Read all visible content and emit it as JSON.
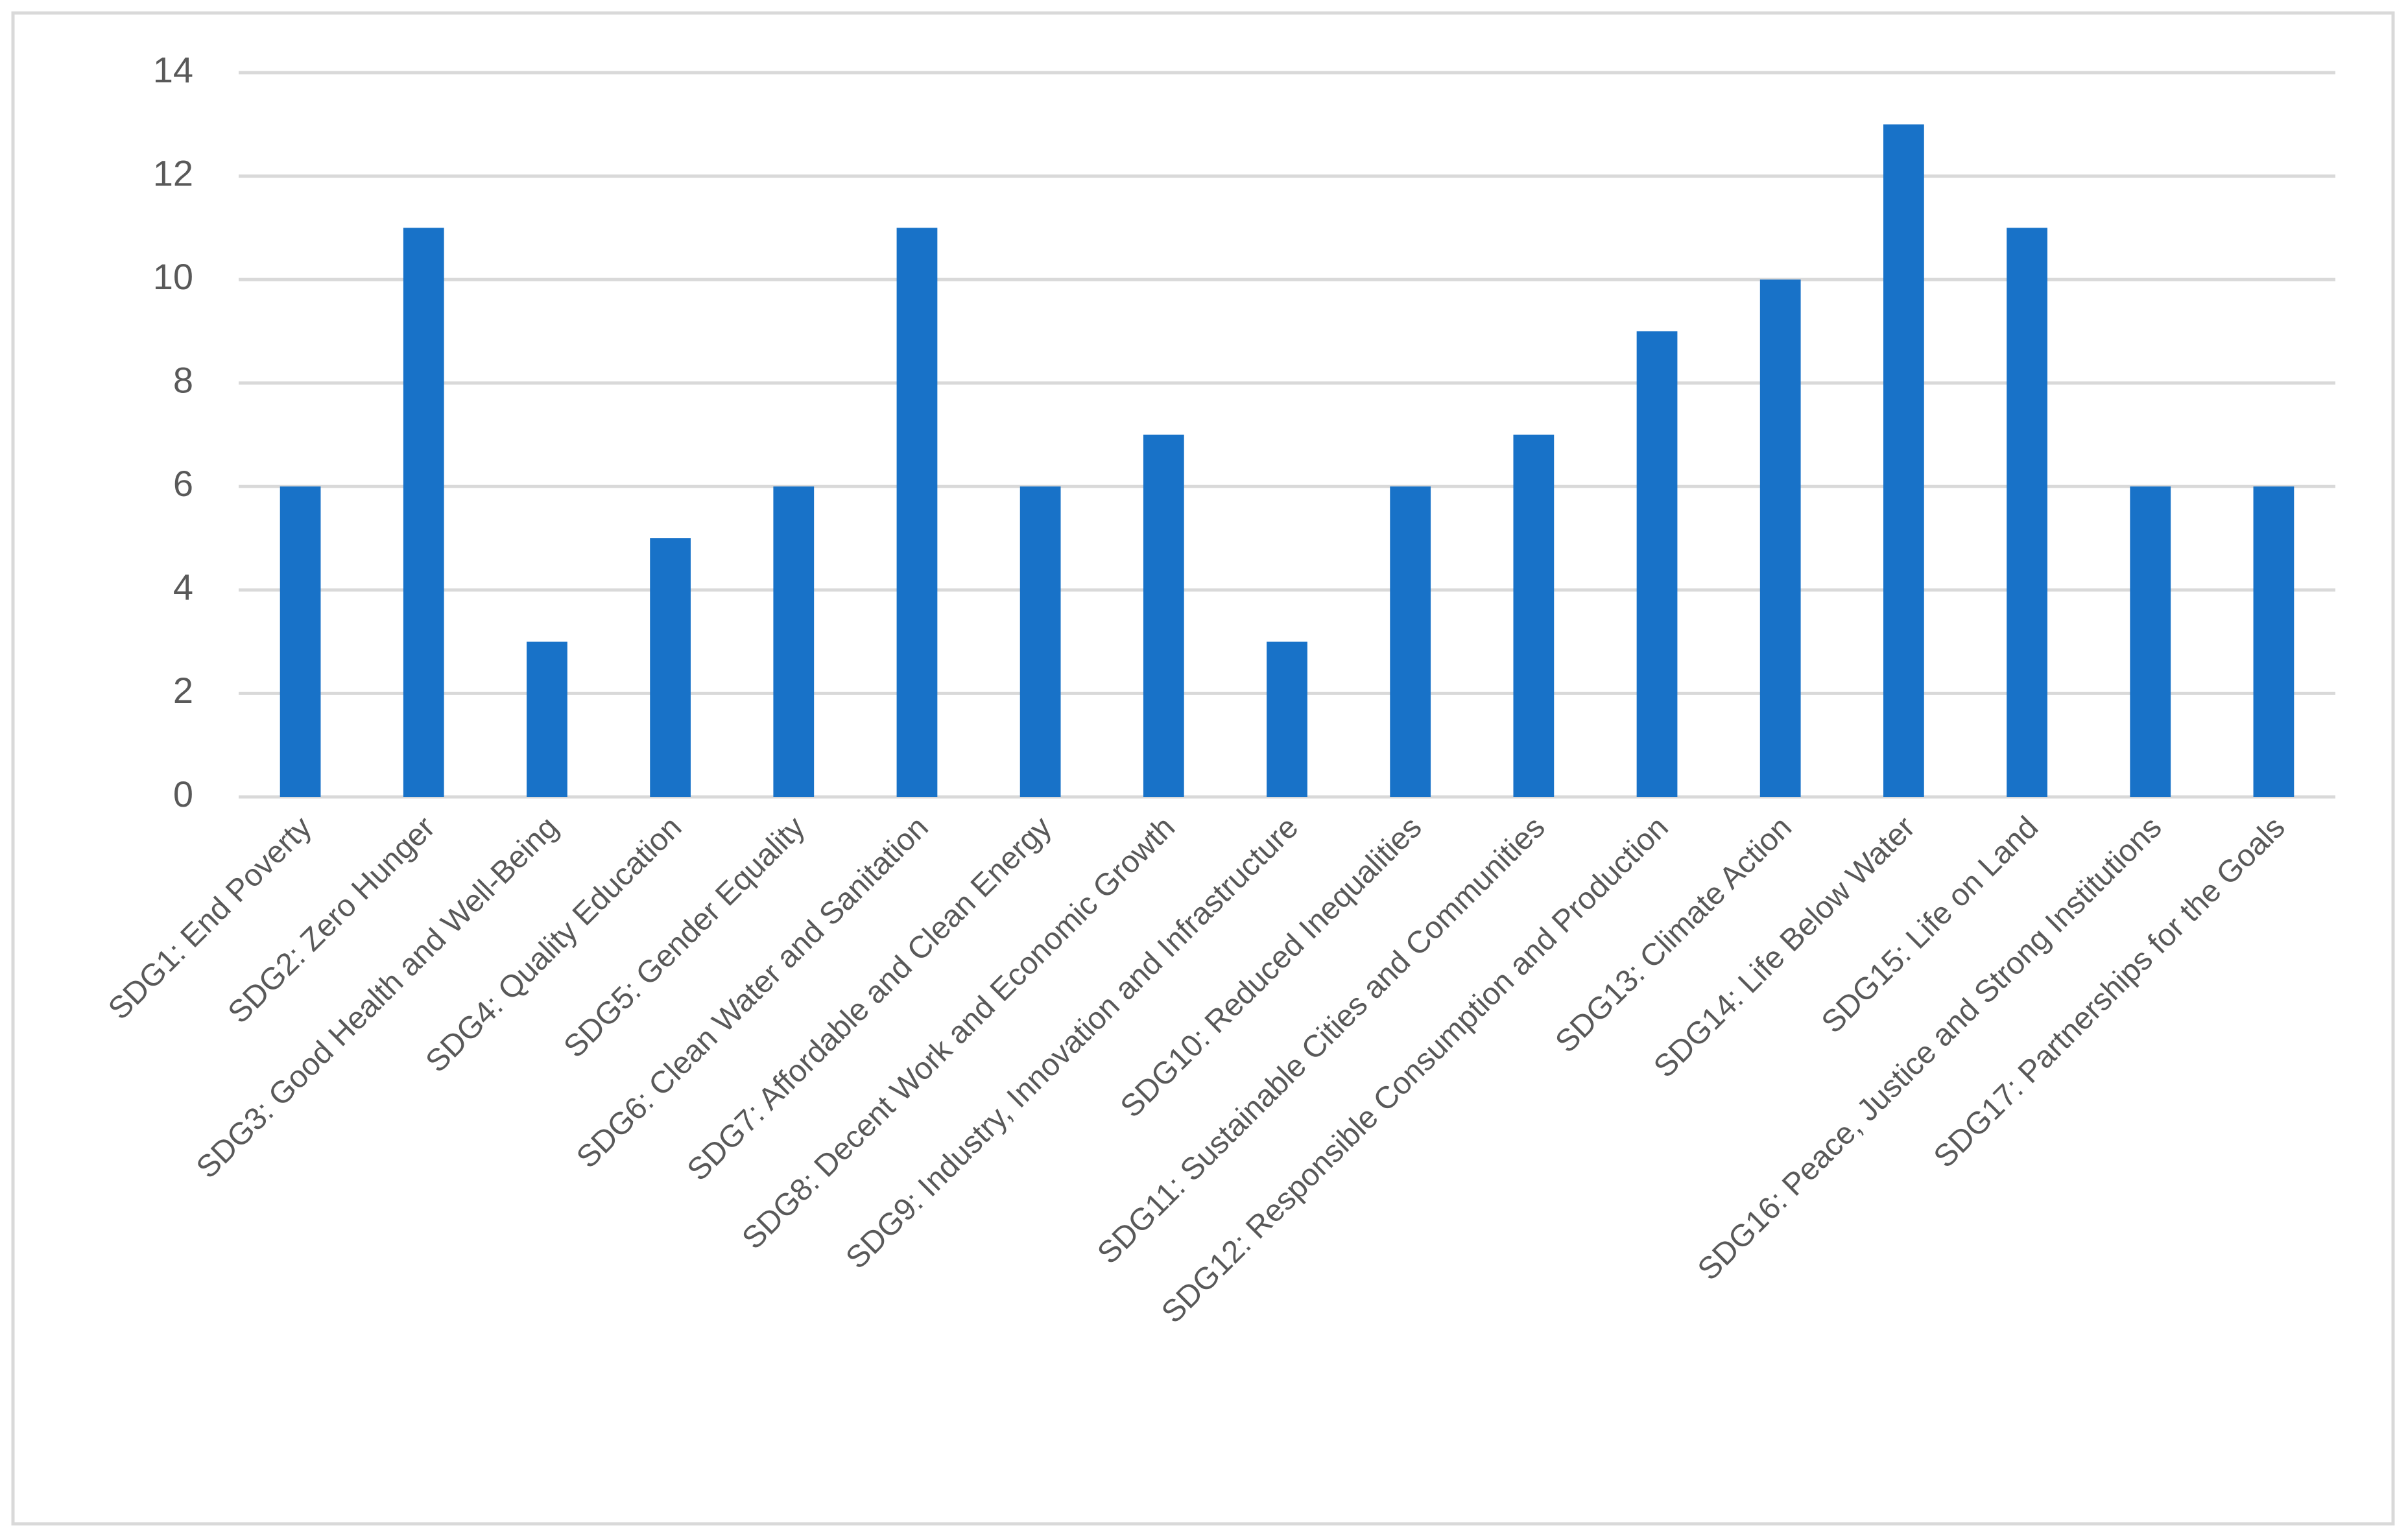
{
  "chart_data": {
    "type": "bar",
    "categories": [
      "SDG1: End Poverty",
      "SDG2: Zero Hunger",
      "SDG3: Good Health and Well-Being",
      "SDG4: Quality Education",
      "SDG5: Gender Equality",
      "SDG6: Clean Water and Sanitation",
      "SDG7: Affordable and Clean Energy",
      "SDG8: Decent Work and Economic Growth",
      "SDG9: Industry, Innovation and Infrastructure",
      "SDG10: Reduced Inequalities",
      "SDG11: Sustainable Cities and Communities",
      "SDG12: Responsible Consumption and Production",
      "SDG13: Climate Action",
      "SDG14: Life Below Water",
      "SDG15: Life on Land",
      "SDG16: Peace, Justice and Strong Institutions",
      "SDG17: Partnerships for the Goals"
    ],
    "values": [
      6,
      11,
      3,
      5,
      6,
      11,
      6,
      7,
      3,
      6,
      7,
      9,
      10,
      13,
      11,
      6,
      6
    ],
    "color": "#1872c8",
    "ylim": [
      0,
      14
    ],
    "yticks": [
      0,
      2,
      4,
      6,
      8,
      10,
      12,
      14
    ],
    "grid": true
  }
}
